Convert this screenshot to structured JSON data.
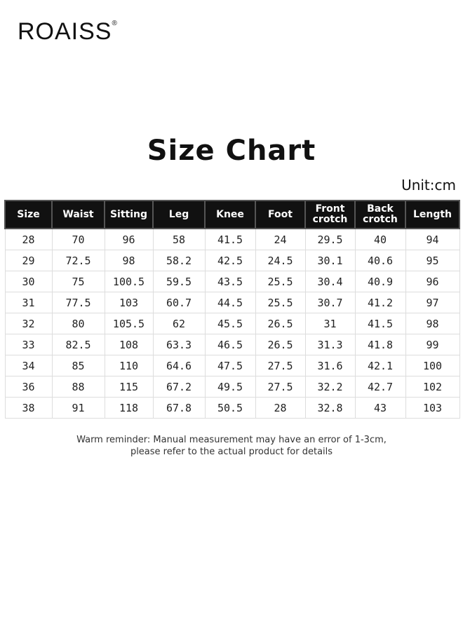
{
  "brand": {
    "name": "ROAISS",
    "mark": "®"
  },
  "title": "Size Chart",
  "unit": "Unit:cm",
  "table": {
    "headers": [
      "Size",
      "Waist",
      "Sitting",
      "Leg",
      "Knee",
      "Foot",
      "Front crotch",
      "Back crotch",
      "Length"
    ],
    "rows": [
      [
        "28",
        "70",
        "96",
        "58",
        "41.5",
        "24",
        "29.5",
        "40",
        "94"
      ],
      [
        "29",
        "72.5",
        "98",
        "58.2",
        "42.5",
        "24.5",
        "30.1",
        "40.6",
        "95"
      ],
      [
        "30",
        "75",
        "100.5",
        "59.5",
        "43.5",
        "25.5",
        "30.4",
        "40.9",
        "96"
      ],
      [
        "31",
        "77.5",
        "103",
        "60.7",
        "44.5",
        "25.5",
        "30.7",
        "41.2",
        "97"
      ],
      [
        "32",
        "80",
        "105.5",
        "62",
        "45.5",
        "26.5",
        "31",
        "41.5",
        "98"
      ],
      [
        "33",
        "82.5",
        "108",
        "63.3",
        "46.5",
        "26.5",
        "31.3",
        "41.8",
        "99"
      ],
      [
        "34",
        "85",
        "110",
        "64.6",
        "47.5",
        "27.5",
        "31.6",
        "42.1",
        "100"
      ],
      [
        "36",
        "88",
        "115",
        "67.2",
        "49.5",
        "27.5",
        "32.2",
        "42.7",
        "102"
      ],
      [
        "38",
        "91",
        "118",
        "67.8",
        "50.5",
        "28",
        "32.8",
        "43",
        "103"
      ]
    ]
  },
  "note": {
    "line1": "Warm reminder: Manual measurement may have an error of 1-3cm,",
    "line2": "please refer to the actual product for details"
  }
}
